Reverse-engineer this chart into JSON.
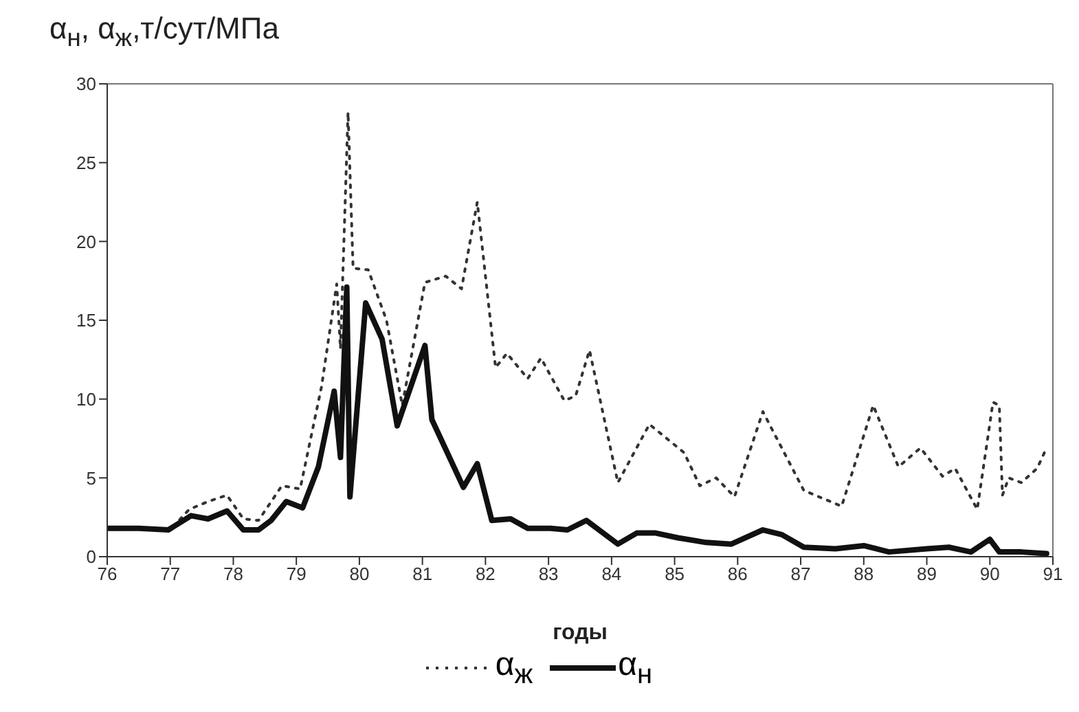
{
  "chart_data": {
    "type": "line",
    "ylabel": "α$_{н}$,  α$_{ж}$,т/сут/МПа",
    "xlabel": "годы",
    "xlim": [
      76,
      91
    ],
    "xticks": [
      76,
      77,
      78,
      79,
      80,
      81,
      82,
      83,
      84,
      85,
      86,
      87,
      88,
      89,
      90,
      91
    ],
    "ylim": [
      0,
      30
    ],
    "yticks": [
      0,
      5,
      10,
      15,
      20,
      25,
      30
    ],
    "legend": "bottom",
    "marker": "none",
    "series": [
      {
        "name": "α$_{ж}$",
        "color": "#333333",
        "line_style": "dotted",
        "x": [
          76,
          77,
          77.3,
          77.6,
          77.9,
          78.16,
          78.4,
          78.77,
          79.06,
          79.4,
          79.64,
          79.7,
          79.82,
          79.9,
          80.14,
          80.43,
          80.68,
          81.04,
          81.37,
          81.62,
          81.87,
          82.16,
          82.34,
          82.67,
          82.88,
          83.25,
          83.43,
          83.65,
          84.1,
          84.6,
          85.15,
          85.4,
          85.66,
          85.95,
          86.4,
          87.05,
          87.65,
          88.15,
          88.55,
          88.9,
          89.25,
          89.45,
          89.8,
          90.05,
          90.15,
          90.2,
          90.3,
          90.5,
          90.75,
          90.9
        ],
        "values": [
          1.8,
          1.7,
          3,
          3.5,
          3.9,
          2.4,
          2.3,
          4.5,
          4.3,
          10.8,
          17.3,
          13.2,
          28.2,
          18.3,
          18.2,
          15,
          9.6,
          17.4,
          17.8,
          17,
          22.5,
          12,
          12.9,
          11.3,
          12.6,
          9.9,
          10.2,
          13.1,
          4.7,
          8.4,
          6.6,
          4.5,
          5,
          3.8,
          9.2,
          4.2,
          3.2,
          9.6,
          5.7,
          6.9,
          5.1,
          5.6,
          3,
          9.8,
          9.6,
          3.9,
          5,
          4.7,
          5.6,
          6.9
        ]
      },
      {
        "name": "α$_{н}$",
        "color": "#111111",
        "line_style": "solid",
        "x": [
          76,
          76.5,
          76.97,
          77.33,
          77.6,
          77.9,
          78.16,
          78.4,
          78.6,
          78.84,
          79.1,
          79.35,
          79.6,
          79.7,
          79.8,
          79.85,
          80.1,
          80.36,
          80.6,
          81.04,
          81.15,
          81.65,
          81.87,
          82.1,
          82.4,
          82.67,
          83.03,
          83.3,
          83.6,
          84.1,
          84.4,
          84.7,
          85.05,
          85.5,
          85.9,
          86.4,
          86.7,
          87.05,
          87.55,
          88,
          88.4,
          89,
          89.35,
          89.7,
          90,
          90.15,
          90.5,
          90.9
        ],
        "values": [
          1.8,
          1.8,
          1.7,
          2.6,
          2.4,
          2.9,
          1.7,
          1.7,
          2.3,
          3.5,
          3.1,
          5.7,
          10.5,
          6.3,
          17.1,
          3.8,
          16.1,
          13.8,
          8.3,
          13.4,
          8.7,
          4.4,
          5.9,
          2.3,
          2.4,
          1.8,
          1.8,
          1.7,
          2.3,
          0.8,
          1.5,
          1.5,
          1.2,
          0.9,
          0.8,
          1.7,
          1.4,
          0.6,
          0.5,
          0.7,
          0.3,
          0.5,
          0.6,
          0.3,
          1.1,
          0.3,
          0.3,
          0.2
        ]
      }
    ]
  }
}
